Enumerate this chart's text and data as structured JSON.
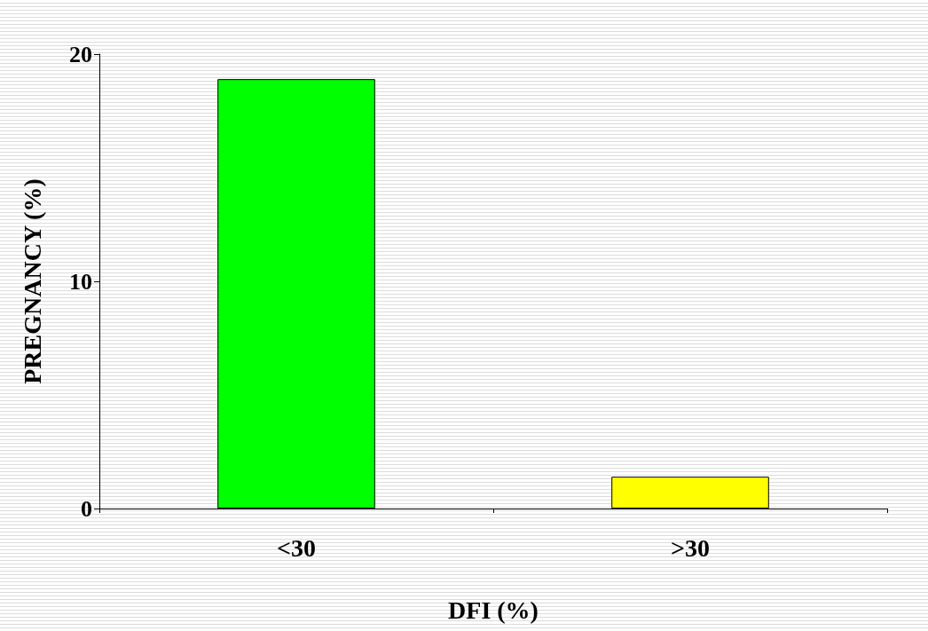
{
  "chart_data": {
    "type": "bar",
    "xlabel": "DFI (%)",
    "ylabel": "PREGNANCY (%)",
    "categories": [
      "<30",
      ">30"
    ],
    "values": [
      18.9,
      1.4
    ],
    "colors": [
      "#00ff00",
      "#ffff00"
    ],
    "ylim": [
      0,
      20
    ],
    "yticks": [
      0,
      10,
      20
    ],
    "grid": false
  }
}
